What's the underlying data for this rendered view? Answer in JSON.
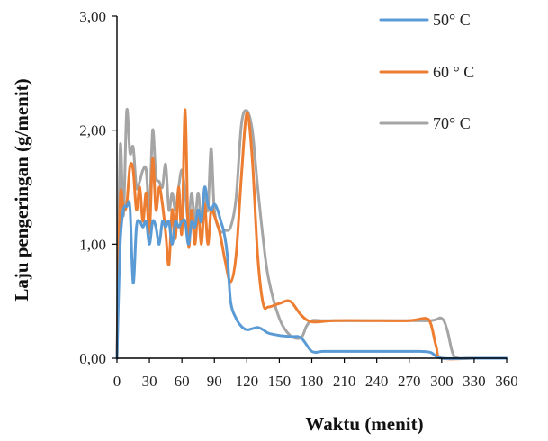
{
  "chart_data": {
    "type": "line",
    "title": "",
    "xlabel": "Waktu (menit)",
    "ylabel": "Laju pengeringan (g/menit)",
    "xlim": [
      0,
      360
    ],
    "ylim": [
      0,
      3
    ],
    "x_ticks": [
      "0",
      "30",
      "60",
      "90",
      "120",
      "150",
      "180",
      "210",
      "240",
      "270",
      "300",
      "330",
      "360"
    ],
    "y_ticks": [
      "0,00",
      "1,00",
      "2,00",
      "3,00"
    ],
    "grid": false,
    "legend_position": "top-right",
    "series": [
      {
        "name": "50° C",
        "color": "#5B9BD5",
        "x": [
          0,
          3,
          6,
          9,
          12,
          15,
          18,
          21,
          24,
          27,
          30,
          33,
          36,
          39,
          42,
          45,
          48,
          51,
          54,
          57,
          60,
          63,
          66,
          69,
          72,
          75,
          78,
          81,
          84,
          87,
          90,
          93,
          96,
          99,
          102,
          105,
          110,
          115,
          120,
          125,
          130,
          135,
          140,
          150,
          160,
          170,
          180,
          190,
          200,
          210,
          240,
          270,
          280,
          290,
          300,
          330,
          360
        ],
        "y": [
          0,
          1.0,
          1.3,
          1.33,
          1.32,
          0.66,
          1.15,
          1.2,
          1.15,
          1.2,
          1.0,
          1.2,
          1.15,
          1.0,
          1.2,
          1.15,
          1.2,
          1.0,
          1.2,
          1.15,
          1.2,
          1.2,
          1.0,
          1.2,
          1.15,
          1.3,
          1.2,
          1.5,
          1.35,
          1.3,
          1.35,
          1.3,
          1.2,
          1.1,
          0.9,
          0.5,
          0.35,
          0.28,
          0.25,
          0.26,
          0.27,
          0.25,
          0.22,
          0.2,
          0.19,
          0.18,
          0.06,
          0.06,
          0.06,
          0.06,
          0.06,
          0.06,
          0.06,
          0.05,
          0.0,
          0.0,
          0.0
        ]
      },
      {
        "name": "60 ° C",
        "color": "#ED7D31",
        "x": [
          0,
          3,
          6,
          9,
          12,
          15,
          18,
          21,
          24,
          27,
          30,
          33,
          36,
          39,
          42,
          45,
          48,
          51,
          54,
          57,
          60,
          63,
          66,
          69,
          72,
          75,
          78,
          81,
          84,
          87,
          90,
          95,
          100,
          105,
          110,
          115,
          120,
          125,
          130,
          135,
          140,
          150,
          160,
          170,
          180,
          200,
          230,
          270,
          285,
          290,
          295,
          300,
          330,
          360
        ],
        "y": [
          0,
          1.4,
          1.3,
          1.35,
          1.68,
          1.65,
          1.3,
          1.5,
          1.2,
          1.45,
          1.1,
          1.75,
          1.3,
          1.5,
          1.35,
          1.1,
          0.82,
          1.3,
          1.05,
          1.5,
          1.1,
          2.18,
          1.0,
          1.3,
          1.0,
          1.3,
          1.0,
          1.35,
          1.0,
          1.3,
          1.25,
          1.1,
          0.85,
          0.67,
          0.9,
          1.6,
          2.15,
          1.75,
          0.9,
          0.48,
          0.45,
          0.48,
          0.5,
          0.38,
          0.32,
          0.33,
          0.33,
          0.33,
          0.35,
          0.3,
          0.1,
          0.0,
          0.0,
          0.0
        ]
      },
      {
        "name": "70° C",
        "color": "#A5A5A5",
        "x": [
          0,
          3,
          6,
          9,
          12,
          15,
          18,
          21,
          24,
          27,
          30,
          33,
          36,
          39,
          42,
          45,
          48,
          51,
          54,
          57,
          60,
          63,
          66,
          69,
          72,
          75,
          78,
          81,
          84,
          87,
          90,
          95,
          100,
          105,
          110,
          115,
          120,
          125,
          130,
          135,
          140,
          150,
          160,
          170,
          175,
          180,
          190,
          220,
          260,
          290,
          300,
          305,
          310,
          315,
          330,
          360
        ],
        "y": [
          0,
          1.85,
          1.25,
          2.17,
          1.8,
          1.85,
          1.5,
          1.55,
          1.65,
          1.65,
          1.3,
          2.0,
          1.6,
          1.55,
          1.5,
          1.7,
          1.3,
          1.45,
          1.3,
          1.5,
          1.65,
          1.45,
          1.2,
          1.45,
          1.2,
          1.45,
          1.2,
          1.45,
          1.3,
          1.84,
          1.3,
          1.12,
          1.12,
          1.15,
          1.4,
          2.05,
          2.17,
          2.0,
          1.5,
          1.05,
          0.7,
          0.35,
          0.2,
          0.18,
          0.28,
          0.33,
          0.33,
          0.33,
          0.33,
          0.33,
          0.35,
          0.25,
          0.05,
          0.0,
          0.0,
          0.0
        ]
      }
    ]
  }
}
